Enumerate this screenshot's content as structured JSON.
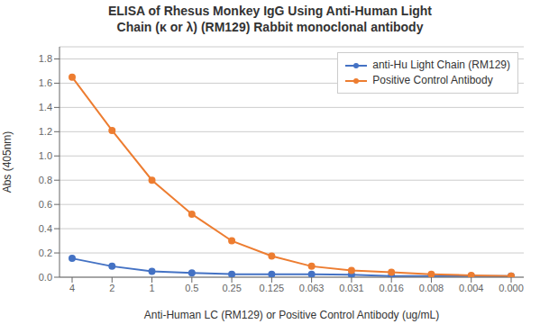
{
  "chart_data": {
    "type": "line",
    "title": "ELISA of Rhesus Monkey IgG Using Anti-Human Light\nChain (κ or λ) (RM129) Rabbit monoclonal antibody",
    "xlabel": "Anti-Human LC (RM129) or Positive Control Antibody (ug/mL)",
    "ylabel": "Abs (405nm)",
    "categories": [
      "4",
      "2",
      "1",
      "0.5",
      "0.25",
      "0.125",
      "0.063",
      "0.031",
      "0.016",
      "0.008",
      "0.004",
      "0.000"
    ],
    "series": [
      {
        "name": "anti-Hu Light Chain (RM129)",
        "color": "#4472C4",
        "values": [
          0.155,
          0.09,
          0.048,
          0.035,
          0.025,
          0.025,
          0.025,
          0.02,
          0.01,
          0.01,
          0.01,
          0.01
        ]
      },
      {
        "name": "Positive Control Antibody",
        "color": "#ED7D31",
        "values": [
          1.65,
          1.21,
          0.8,
          0.52,
          0.3,
          0.175,
          0.09,
          0.055,
          0.04,
          0.025,
          0.015,
          0.01
        ]
      }
    ],
    "ylim": [
      0,
      1.9
    ],
    "yticks": [
      {
        "value": 0.0,
        "label": "0.0"
      },
      0.2,
      0.4,
      0.6,
      0.8,
      {
        "value": 1.0,
        "label": "1.0"
      },
      1.2,
      1.4,
      1.6,
      1.8
    ],
    "grid": true,
    "legend": "upper right",
    "marker": "circle"
  }
}
